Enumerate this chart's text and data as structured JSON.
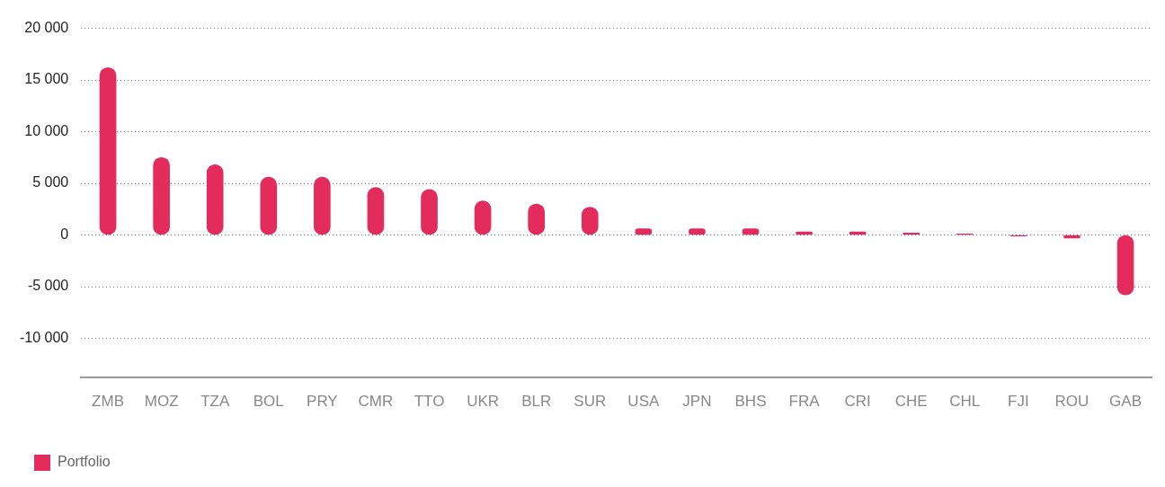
{
  "chart_data": {
    "type": "bar",
    "categories": [
      "ZMB",
      "MOZ",
      "TZA",
      "BOL",
      "PRY",
      "CMR",
      "TTO",
      "UKR",
      "BLR",
      "SUR",
      "USA",
      "JPN",
      "BHS",
      "FRA",
      "CRI",
      "CHE",
      "CHL",
      "FJI",
      "ROU",
      "GAB"
    ],
    "series": [
      {
        "name": "Portfolio",
        "color": "#e32b5c",
        "values": [
          16200,
          7500,
          6800,
          5600,
          5600,
          4600,
          4400,
          3300,
          3000,
          2700,
          600,
          600,
          600,
          300,
          300,
          200,
          100,
          -100,
          -300,
          -5800
        ]
      }
    ],
    "ylim": [
      -13750,
      20000
    ],
    "yticks": [
      {
        "value": 20000,
        "label": "20 000"
      },
      {
        "value": 15000,
        "label": "15 000"
      },
      {
        "value": 10000,
        "label": "10 000"
      },
      {
        "value": 5000,
        "label": "5 000"
      },
      0,
      {
        "value": -5000,
        "label": "-5 000"
      },
      {
        "value": -10000,
        "label": "-10 000"
      }
    ],
    "grid": "y",
    "legend": "bottom left"
  }
}
